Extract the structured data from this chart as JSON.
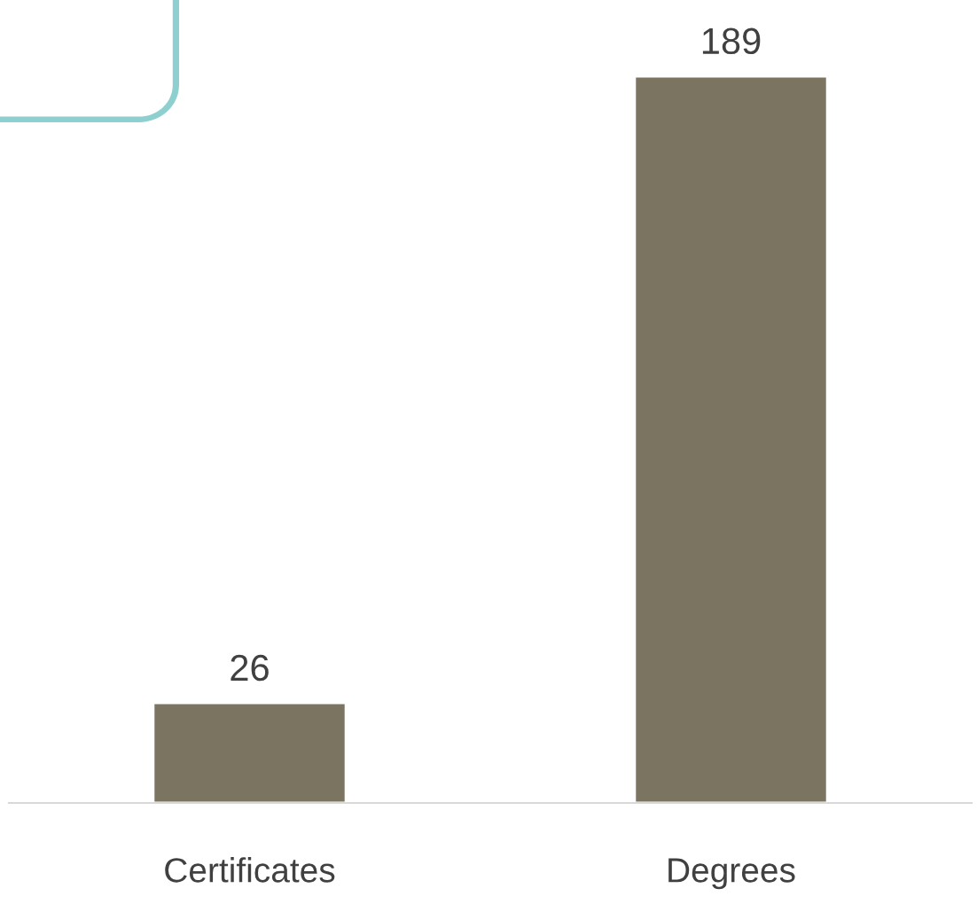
{
  "chart_data": {
    "type": "bar",
    "categories": [
      "Certificates",
      "Degrees"
    ],
    "values": [
      26,
      189
    ],
    "color": "#7b7461",
    "data_labels": true,
    "grid": false
  }
}
